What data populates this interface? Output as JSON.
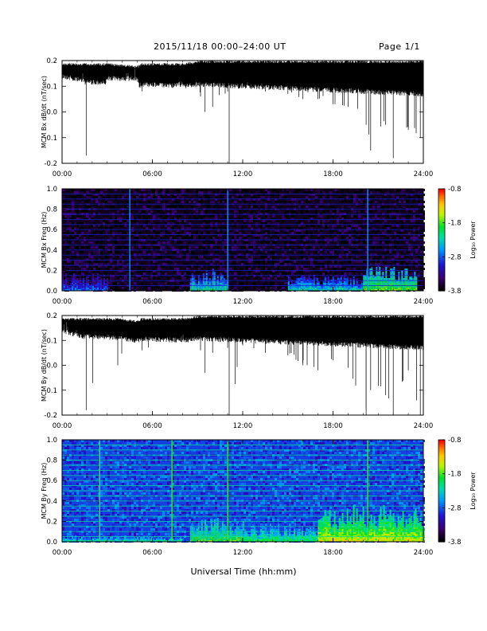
{
  "header": {
    "title": "2015/11/18  00:00–24:00 UT",
    "page": "Page 1/1"
  },
  "xaxis": {
    "label": "Universal Time (hh:mm)",
    "ticks": [
      "00:00",
      "06:00",
      "12:00",
      "18:00",
      "24:00"
    ]
  },
  "colorbar": {
    "label": "Log₁₀ Power",
    "ticks": [
      "-0.8",
      "-1.8",
      "-2.8",
      "-3.8"
    ],
    "range": [
      -3.8,
      -0.8
    ]
  },
  "chart_data": [
    {
      "type": "line",
      "ylabel": "MCM Bx dB/dt (nT/sec)",
      "xlim": [
        0,
        24
      ],
      "ylim": [
        -0.2,
        0.2
      ],
      "yticks": [
        "-0.2",
        "-0.1",
        "0.0",
        "0.1",
        "0.2"
      ],
      "x_hours": [
        0,
        1.5,
        1.6,
        3,
        5,
        5.3,
        8,
        9.2,
        9.5,
        10,
        11,
        11.1,
        12,
        13.5,
        15,
        16,
        17,
        18,
        19,
        20.2,
        20.5,
        21.5,
        22,
        23,
        23.8,
        24
      ],
      "upper": [
        0.19,
        0.19,
        0.19,
        0.19,
        0.18,
        0.19,
        0.19,
        0.2,
        0.2,
        0.2,
        0.2,
        0.2,
        0.2,
        0.2,
        0.2,
        0.2,
        0.2,
        0.2,
        0.2,
        0.2,
        0.2,
        0.2,
        0.2,
        0.2,
        0.2,
        0.2
      ],
      "lower": [
        0.15,
        0.13,
        -0.17,
        0.14,
        0.14,
        0.08,
        0.12,
        0.06,
        0.0,
        0.02,
        0.08,
        -0.2,
        0.1,
        0.08,
        0.07,
        0.05,
        0.05,
        0.03,
        0.02,
        -0.05,
        -0.15,
        -0.05,
        -0.18,
        -0.07,
        -0.1,
        0.02
      ]
    },
    {
      "type": "heatmap",
      "ylabel": "MCM Bx Freq (Hz)",
      "xlim": [
        0,
        24
      ],
      "ylim": [
        0.0,
        1.0
      ],
      "yticks": [
        "0.0",
        "0.2",
        "0.4",
        "0.6",
        "0.8",
        "1.0"
      ],
      "units": "Log10 Power",
      "crange": [
        -3.8,
        -0.8
      ],
      "background_log_power": -3.7,
      "harmonic_lines_hz": [
        0.05,
        0.1,
        0.15,
        0.2,
        0.25,
        0.3,
        0.35,
        0.4,
        0.45,
        0.5,
        0.55,
        0.6,
        0.65,
        0.7,
        0.75,
        0.8,
        0.85,
        0.9,
        0.95,
        1.0
      ],
      "vertical_lines_hours": [
        4.5,
        11.0,
        20.3
      ],
      "activity_low_freq": [
        {
          "x": [
            0,
            3
          ],
          "max_freq": 0.15,
          "log_power": -3.2
        },
        {
          "x": [
            8.5,
            11
          ],
          "max_freq": 0.18,
          "log_power": -2.6
        },
        {
          "x": [
            15,
            20
          ],
          "max_freq": 0.12,
          "log_power": -2.7
        },
        {
          "x": [
            20,
            23.5
          ],
          "max_freq": 0.2,
          "log_power": -2.2
        }
      ]
    },
    {
      "type": "line",
      "ylabel": "MCM By dB/dt (nT/sec)",
      "xlim": [
        0,
        24
      ],
      "ylim": [
        -0.2,
        0.2
      ],
      "yticks": [
        "-0.2",
        "-0.1",
        "0.0",
        "0.1",
        "0.2"
      ],
      "x_hours": [
        0,
        1.5,
        1.6,
        3,
        3.7,
        5,
        5.3,
        8,
        9.2,
        9.5,
        10,
        11,
        11.1,
        12,
        13.5,
        15,
        16,
        17,
        18,
        19,
        20.2,
        20.5,
        21.5,
        22,
        23,
        23.8,
        24
      ],
      "upper": [
        0.19,
        0.19,
        0.19,
        0.19,
        0.19,
        0.18,
        0.19,
        0.19,
        0.2,
        0.2,
        0.2,
        0.2,
        0.2,
        0.2,
        0.2,
        0.2,
        0.2,
        0.2,
        0.2,
        0.2,
        0.2,
        0.2,
        0.2,
        0.2,
        0.2,
        0.2,
        0.2
      ],
      "lower": [
        0.15,
        0.12,
        -0.18,
        0.13,
        0.0,
        0.12,
        0.06,
        0.1,
        0.06,
        -0.03,
        0.05,
        0.07,
        -0.2,
        0.08,
        0.05,
        0.04,
        0.0,
        -0.02,
        0.02,
        -0.01,
        -0.2,
        -0.1,
        -0.12,
        -0.2,
        -0.02,
        -0.2,
        0.0
      ]
    },
    {
      "type": "heatmap",
      "ylabel": "MCM By Freq (Hz)",
      "xlim": [
        0,
        24
      ],
      "ylim": [
        0.0,
        1.0
      ],
      "yticks": [
        "0.0",
        "0.2",
        "0.4",
        "0.6",
        "0.8",
        "1.0"
      ],
      "units": "Log10 Power",
      "crange": [
        -3.8,
        -0.8
      ],
      "background_log_power": -2.9,
      "harmonic_lines_hz": [
        0.05,
        0.1,
        0.15,
        0.2,
        0.25,
        0.3,
        0.35,
        0.4,
        0.45,
        0.5,
        0.55,
        0.6,
        0.65,
        0.7,
        0.75,
        0.8,
        0.85,
        0.9,
        0.95,
        1.0
      ],
      "vertical_lines_hours": [
        2.5,
        7.3,
        11.0,
        20.3
      ],
      "activity_low_freq": [
        {
          "x": [
            0,
            8
          ],
          "max_freq": 0.05,
          "log_power": -2.6
        },
        {
          "x": [
            8.5,
            12
          ],
          "max_freq": 0.2,
          "log_power": -2.2
        },
        {
          "x": [
            12,
            17
          ],
          "max_freq": 0.15,
          "log_power": -2.4
        },
        {
          "x": [
            17,
            24
          ],
          "max_freq": 0.3,
          "log_power": -1.9
        }
      ]
    }
  ]
}
